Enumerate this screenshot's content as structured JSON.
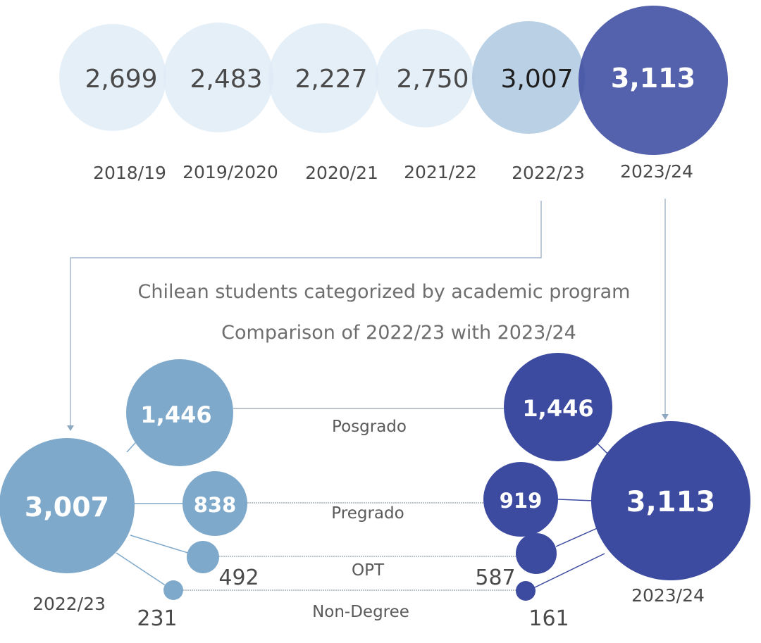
{
  "chart_data": [
    {
      "type": "bubble",
      "categories": [
        "2018/19",
        "2019/2020",
        "2020/21",
        "2021/22",
        "2022/23",
        "2023/24"
      ],
      "values": [
        2699,
        2483,
        2227,
        2750,
        3007,
        3113
      ],
      "value_labels": [
        "2,699",
        "2,483",
        "2,227",
        "2,750",
        "3,007",
        "3,113"
      ]
    },
    {
      "type": "bubble",
      "title": "Chilean students categorized by academic program",
      "subtitle": "Comparison of 2022/23 with 2023/24",
      "categories": [
        "Posgrado",
        "Pregrado",
        "OPT",
        "Non-Degree"
      ],
      "series": [
        {
          "name": "2022/23",
          "total": 3007,
          "total_label": "3,007",
          "values": [
            1446,
            838,
            492,
            231
          ],
          "value_labels": [
            "1,446",
            "838",
            "492",
            "231"
          ]
        },
        {
          "name": "2023/24",
          "total": 3113,
          "total_label": "3,113",
          "values": [
            1446,
            919,
            587,
            161
          ],
          "value_labels": [
            "1,446",
            "919",
            "587",
            "161"
          ]
        }
      ]
    }
  ],
  "colors": {
    "light": "#dce9f6",
    "mid": "#a9c6de",
    "steel": "#7fa9cb",
    "navy": "#3c4ba0",
    "line": "#8fa8c2",
    "connector": "#7a8a9a"
  }
}
